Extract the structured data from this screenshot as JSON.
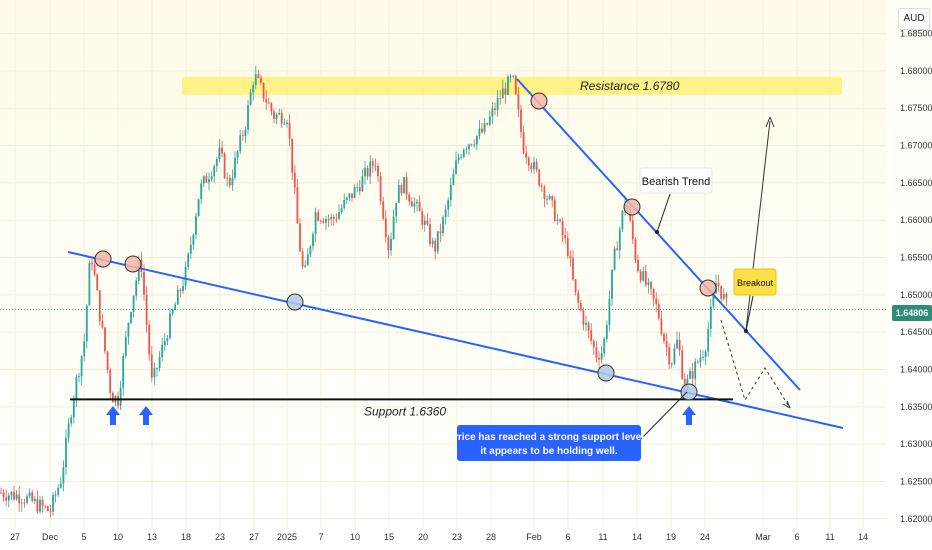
{
  "currency": "AUD",
  "current_price": "1.64806",
  "annotations": {
    "resistance": "Resistance 1.6780",
    "support": "Support 1.6360",
    "bearish": "Bearish Trend",
    "breakout": "Breakout",
    "note_line1": "Price has reached a strong support level,",
    "note_line2": "it appears to be holding well."
  },
  "colors": {
    "bullish": "#26a69a",
    "bearish": "#ef5350",
    "trendline": "#2962ff",
    "resistance_zone": "#fff176",
    "note_bg": "#2962ff",
    "arrow": "#2962ff",
    "breakout_bg": "#fde047"
  },
  "chart_data": {
    "type": "candlestick",
    "x_ticks": [
      "27",
      "Dec",
      "5",
      "10",
      "13",
      "18",
      "23",
      "27",
      "2025",
      "7",
      "10",
      "15",
      "20",
      "23",
      "28",
      "Feb",
      "6",
      "11",
      "14",
      "19",
      "24",
      "Mar",
      "6",
      "11",
      "14"
    ],
    "y_ticks": [
      "1.62000",
      "1.62500",
      "1.63000",
      "1.63500",
      "1.64000",
      "1.64500",
      "1.65000",
      "1.65500",
      "1.66000",
      "1.66500",
      "1.67000",
      "1.67500",
      "1.68000",
      "1.68500"
    ],
    "ylim": [
      1.6185,
      1.6895
    ],
    "price_path": [
      {
        "t": "Nov 25",
        "p": 1.6235
      },
      {
        "t": "Nov 28",
        "p": 1.623
      },
      {
        "t": "Dec 2",
        "p": 1.621
      },
      {
        "t": "Dec 3",
        "p": 1.6255
      },
      {
        "t": "Dec 4",
        "p": 1.636
      },
      {
        "t": "Dec 5",
        "p": 1.6435
      },
      {
        "t": "Dec 6",
        "p": 1.656
      },
      {
        "t": "Dec 9",
        "p": 1.6365
      },
      {
        "t": "Dec 10",
        "p": 1.636
      },
      {
        "t": "Dec 11",
        "p": 1.6475
      },
      {
        "t": "Dec 12",
        "p": 1.655
      },
      {
        "t": "Dec 13",
        "p": 1.638
      },
      {
        "t": "Dec 16",
        "p": 1.6475
      },
      {
        "t": "Dec 18",
        "p": 1.653
      },
      {
        "t": "Dec 20",
        "p": 1.664
      },
      {
        "t": "Dec 23",
        "p": 1.669
      },
      {
        "t": "Dec 24",
        "p": 1.6645
      },
      {
        "t": "Dec 26",
        "p": 1.673
      },
      {
        "t": "Dec 27",
        "p": 1.6795
      },
      {
        "t": "Dec 30",
        "p": 1.674
      },
      {
        "t": "Jan 1",
        "p": 1.674
      },
      {
        "t": "Jan 2",
        "p": 1.6665
      },
      {
        "t": "Jan 3",
        "p": 1.658
      },
      {
        "t": "Jan 4",
        "p": 1.652
      },
      {
        "t": "Jan 6",
        "p": 1.661
      },
      {
        "t": "Jan 8",
        "p": 1.66
      },
      {
        "t": "Jan 10",
        "p": 1.664
      },
      {
        "t": "Jan 13",
        "p": 1.668
      },
      {
        "t": "Jan 14",
        "p": 1.662
      },
      {
        "t": "Jan 15",
        "p": 1.656
      },
      {
        "t": "Jan 16",
        "p": 1.663
      },
      {
        "t": "Jan 17",
        "p": 1.665
      },
      {
        "t": "Jan 20",
        "p": 1.66
      },
      {
        "t": "Jan 21",
        "p": 1.656
      },
      {
        "t": "Jan 22",
        "p": 1.661
      },
      {
        "t": "Jan 23",
        "p": 1.668
      },
      {
        "t": "Jan 24",
        "p": 1.67
      },
      {
        "t": "Jan 27",
        "p": 1.672
      },
      {
        "t": "Jan 29",
        "p": 1.677
      },
      {
        "t": "Jan 30",
        "p": 1.679
      },
      {
        "t": "Jan 31",
        "p": 1.67
      },
      {
        "t": "Feb 2",
        "p": 1.665
      },
      {
        "t": "Feb 4",
        "p": 1.661
      },
      {
        "t": "Feb 6",
        "p": 1.656
      },
      {
        "t": "Feb 7",
        "p": 1.65
      },
      {
        "t": "Feb 10",
        "p": 1.642
      },
      {
        "t": "Feb 11",
        "p": 1.6425
      },
      {
        "t": "Feb 12",
        "p": 1.655
      },
      {
        "t": "Feb 13",
        "p": 1.663
      },
      {
        "t": "Feb 14",
        "p": 1.654
      },
      {
        "t": "Feb 17",
        "p": 1.648
      },
      {
        "t": "Feb 18",
        "p": 1.644
      },
      {
        "t": "Feb 19",
        "p": 1.641
      },
      {
        "t": "Feb 20",
        "p": 1.644
      },
      {
        "t": "Feb 21",
        "p": 1.6375
      },
      {
        "t": "Feb 24",
        "p": 1.643
      },
      {
        "t": "Feb 25",
        "p": 1.652
      },
      {
        "t": "Feb 26",
        "p": 1.648
      }
    ],
    "resistance_level": 1.678,
    "support_level": 1.636,
    "current_value": 1.64806
  }
}
